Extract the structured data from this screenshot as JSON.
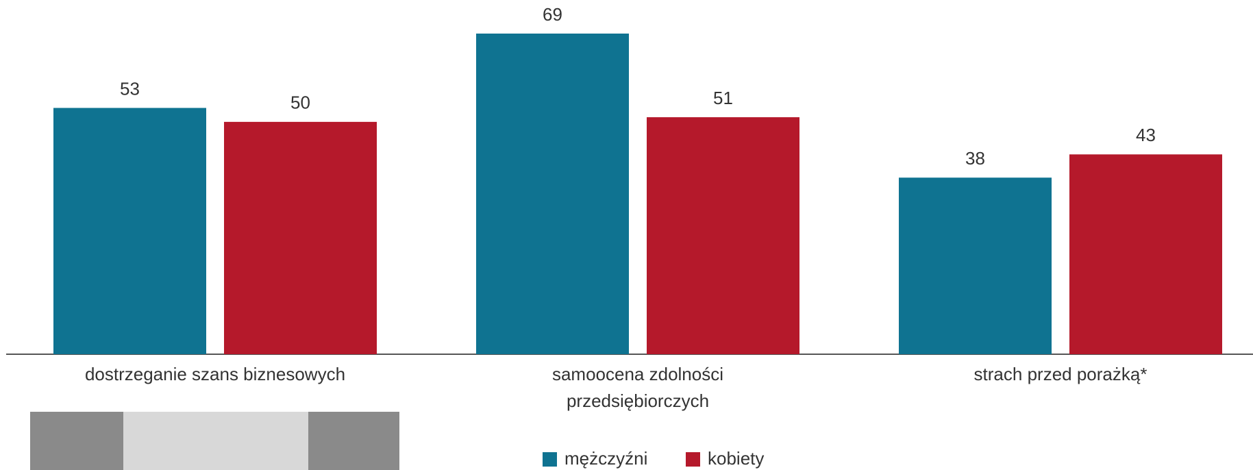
{
  "chart_data": {
    "type": "bar",
    "categories": [
      "dostrzeganie szans biznesowych",
      "samoocena zdolności przedsiębiorczych",
      "strach przed porażką*"
    ],
    "series": [
      {
        "name": "mężczyźni",
        "color": "#0f7391",
        "values": [
          53,
          69,
          38
        ]
      },
      {
        "name": "kobiety",
        "color": "#b5192b",
        "values": [
          50,
          51,
          43
        ]
      }
    ]
  }
}
